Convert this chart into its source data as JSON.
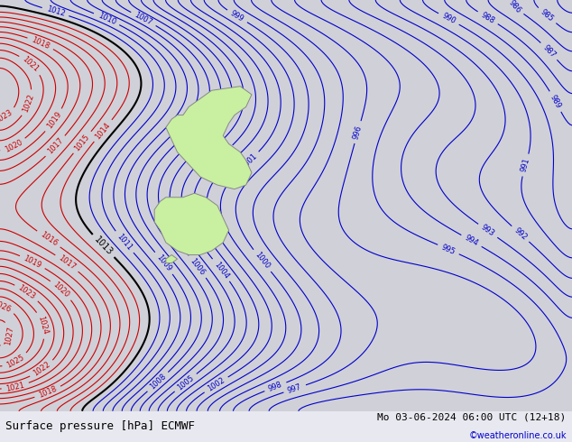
{
  "title_left": "Surface pressure [hPa] ECMWF",
  "title_right": "Mo 03-06-2024 06:00 UTC (12+18)",
  "watermark": "©weatheronline.co.uk",
  "bg_color": "#d0d0d8",
  "land_color": "#c8f0a0",
  "border_color": "#a0a0b0",
  "text_color_black": "#000000",
  "text_color_blue": "#0000cc",
  "text_color_red": "#cc0000",
  "footer_bg": "#e8e8f0",
  "pressure_min": 983,
  "pressure_max": 1028,
  "contour_interval": 1,
  "red_threshold": 1013,
  "black_value": 1013
}
